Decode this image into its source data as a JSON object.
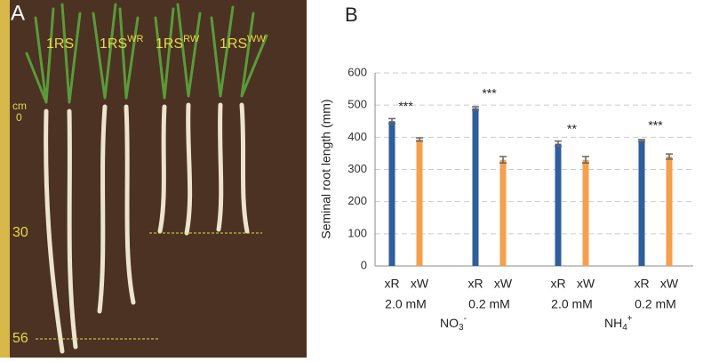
{
  "panel_a": {
    "panel_label": "A",
    "lines": [
      {
        "text": "1RS"
      },
      {
        "text": "1RS",
        "sup": "WR"
      },
      {
        "text": "1RS",
        "sup": "RW"
      },
      {
        "text": "1RS",
        "sup": "WW"
      }
    ],
    "ruler_unit": "cm",
    "ruler_marks": [
      "0",
      "30",
      "56"
    ]
  },
  "chart_data": {
    "type": "bar",
    "panel_label": "B",
    "y_label": "Seminal root length (mm)",
    "categories": [
      "2.0 mM",
      "0.2 mM",
      "2.0 mM",
      "0.2 mM"
    ],
    "series": [
      {
        "name": "xR",
        "color": "#2e5e9c",
        "values": [
          450,
          490,
          380,
          390
        ],
        "errors": [
          8,
          5,
          8,
          3
        ]
      },
      {
        "name": "xW",
        "color": "#f4a04c",
        "values": [
          393,
          330,
          330,
          340
        ],
        "errors": [
          5,
          10,
          10,
          8
        ]
      }
    ],
    "annotations": [
      "***",
      "***",
      "**",
      "***"
    ],
    "ions": [
      {
        "text": "NO",
        "sub": "3",
        "sup": "-"
      },
      {
        "text": "NH",
        "sub": "4",
        "sup": "+"
      }
    ],
    "ylim": [
      0,
      600
    ],
    "yticks": [
      0,
      100,
      200,
      300,
      400,
      500,
      600
    ],
    "grid": true
  }
}
